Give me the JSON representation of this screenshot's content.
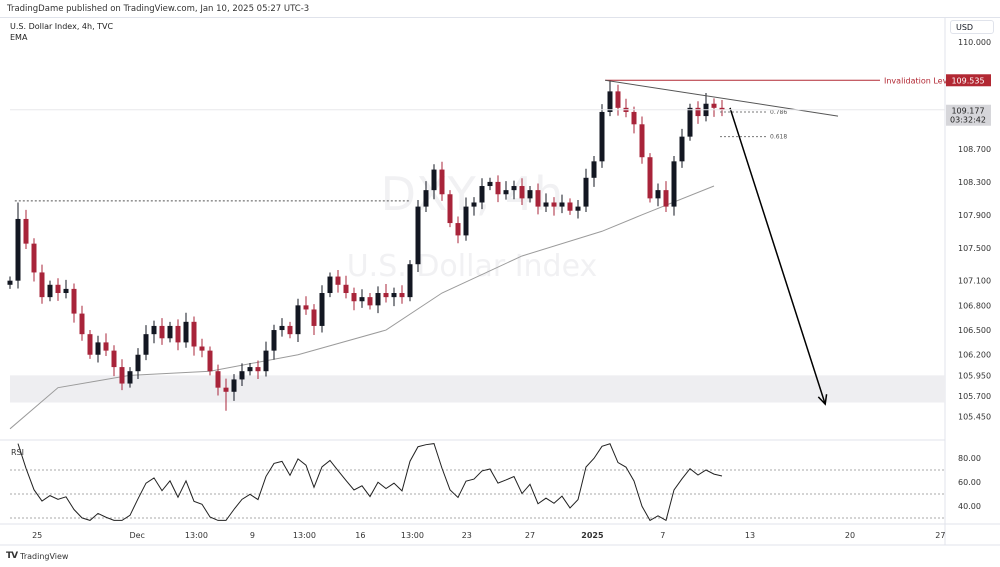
{
  "header": {
    "publisher": "TradingDame published on TradingView.com, Jan 10, 2025 05:27 UTC-3",
    "symbol": "U.S. Dollar Index, 4h, TVC",
    "indicator": "EMA",
    "currency": "USD",
    "watermark_symbol": "DXY, 4h",
    "watermark_name": "U.S. Dollar Index"
  },
  "footer": {
    "brand": "TradingView",
    "logo": "TV"
  },
  "colors": {
    "up": "#131722",
    "down": "#a8243a",
    "invalidation": "#b22833",
    "ema": "#9b9b9b",
    "zone": "#eeeef1"
  },
  "chart_data": {
    "type": "candlestick",
    "title": "U.S. Dollar Index, 4h, TVC",
    "ylim": [
      105.3,
      110.3
    ],
    "price_ticks": [
      "110.000",
      "108.700",
      "108.300",
      "107.900",
      "107.500",
      "107.100",
      "106.800",
      "106.500",
      "106.200",
      "105.950",
      "105.700",
      "105.450"
    ],
    "time_ticks": [
      {
        "label": "25",
        "i": 3.4
      },
      {
        "label": "Dec",
        "i": 15.9
      },
      {
        "label": "13:00",
        "i": 23.3
      },
      {
        "label": "9",
        "i": 30.3
      },
      {
        "label": "13:00",
        "i": 36.8
      },
      {
        "label": "16",
        "i": 43.8
      },
      {
        "label": "13:00",
        "i": 50.3
      },
      {
        "label": "23",
        "i": 57.1
      },
      {
        "label": "27",
        "i": 65
      },
      {
        "label": "2025",
        "i": 72.8,
        "bold": true
      },
      {
        "label": "7",
        "i": 81.6
      },
      {
        "label": "13",
        "i": 92.5
      },
      {
        "label": "20",
        "i": 105
      },
      {
        "label": "27",
        "i": 116.3
      }
    ],
    "closes": [
      107.1,
      107.85,
      107.55,
      107.2,
      106.9,
      107.05,
      106.95,
      107.0,
      106.7,
      106.45,
      106.2,
      106.35,
      106.25,
      106.05,
      105.85,
      106.0,
      106.2,
      106.45,
      106.55,
      106.4,
      106.55,
      106.35,
      106.6,
      106.3,
      106.25,
      106.0,
      105.8,
      105.75,
      105.9,
      106.0,
      106.05,
      106.0,
      106.25,
      106.5,
      106.55,
      106.45,
      106.8,
      106.75,
      106.55,
      106.95,
      107.15,
      107.05,
      106.95,
      106.85,
      106.9,
      106.8,
      106.95,
      106.9,
      106.95,
      106.9,
      107.3,
      108.0,
      108.2,
      108.45,
      108.15,
      107.8,
      107.65,
      108.0,
      108.05,
      108.25,
      108.3,
      108.15,
      108.2,
      108.25,
      108.1,
      108.2,
      108.0,
      108.05,
      108.0,
      108.05,
      107.95,
      108.0,
      108.35,
      108.55,
      109.15,
      109.4,
      109.2,
      109.15,
      109.0,
      108.6,
      108.1,
      108.2,
      108.0,
      108.55,
      108.85,
      109.2,
      109.1,
      109.25,
      109.2,
      109.18
    ],
    "wick_overrides": [
      {
        "i": 1,
        "high": 108.05
      },
      {
        "i": 27,
        "low": 105.52
      },
      {
        "i": 75,
        "high": 109.535
      },
      {
        "i": 87,
        "high": 109.38
      }
    ],
    "ema": [
      [
        0,
        105.3
      ],
      [
        6,
        105.8
      ],
      [
        15,
        105.95
      ],
      [
        25,
        106.0
      ],
      [
        36,
        106.2
      ],
      [
        47,
        106.5
      ],
      [
        54,
        106.95
      ],
      [
        64,
        107.4
      ],
      [
        74,
        107.7
      ],
      [
        79,
        107.9
      ],
      [
        88,
        108.25
      ]
    ],
    "level_dotted": {
      "price": 108.07,
      "from_i": 0.6,
      "to_i": 50
    },
    "invalidation": {
      "label": "Invalidation Level",
      "price": 109.535,
      "value": "109.535"
    },
    "last_price": {
      "value": "109.177",
      "countdown": "03:32:42"
    },
    "fib": [
      {
        "label": "0.786",
        "price": 109.15
      },
      {
        "label": "0.618",
        "price": 108.85
      }
    ],
    "zone": {
      "top": 105.95,
      "bottom": 105.62
    },
    "trendline": [
      [
        74.4,
        109.535
      ],
      [
        103.5,
        109.1
      ]
    ],
    "arrow": [
      [
        90,
        109.2
      ],
      [
        101.9,
        105.6
      ]
    ],
    "rsi": {
      "label": "RSI",
      "ticks": [
        "80.00",
        "60.00",
        "40.00"
      ],
      "bands": [
        70,
        50,
        30
      ],
      "period": 5
    }
  }
}
